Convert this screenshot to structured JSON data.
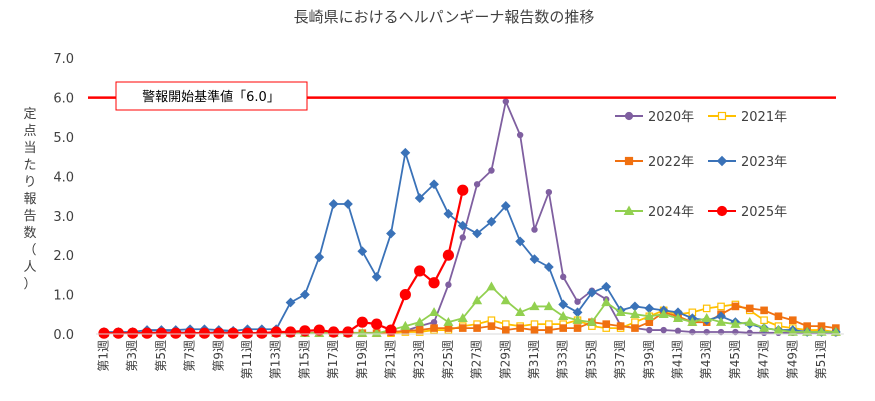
{
  "chart_data": {
    "type": "line",
    "title": "長崎県におけるヘルパンギーナ報告数の推移",
    "ylabel": "定点当たり報告数（人）",
    "xlabel": "",
    "ylim": [
      0,
      7
    ],
    "yticks": [
      "0.0",
      "1.0",
      "2.0",
      "3.0",
      "4.0",
      "5.0",
      "6.0",
      "7.0"
    ],
    "grid": false,
    "legend_position": "right",
    "weeks": [
      1,
      2,
      3,
      4,
      5,
      6,
      7,
      8,
      9,
      10,
      11,
      12,
      13,
      14,
      15,
      16,
      17,
      18,
      19,
      20,
      21,
      22,
      23,
      24,
      25,
      26,
      27,
      28,
      29,
      30,
      31,
      32,
      33,
      34,
      35,
      36,
      37,
      38,
      39,
      40,
      41,
      42,
      43,
      44,
      45,
      46,
      47,
      48,
      49,
      50,
      51,
      52
    ],
    "x_tick_labels": [
      "第1週",
      "第3週",
      "第5週",
      "第7週",
      "第9週",
      "第11週",
      "第13週",
      "第15週",
      "第17週",
      "第19週",
      "第21週",
      "第23週",
      "第25週",
      "第27週",
      "第29週",
      "第31週",
      "第33週",
      "第35週",
      "第37週",
      "第39週",
      "第41週",
      "第43週",
      "第45週",
      "第47週",
      "第49週",
      "第51週"
    ],
    "threshold": {
      "value": 6.0,
      "label": "警報開始基準値「6.0」",
      "color": "#ff0000"
    },
    "series": [
      {
        "name": "2020年",
        "color": "#7f5fa0",
        "marker": "circle",
        "fill": true,
        "values": [
          0.02,
          0.03,
          0.03,
          0.03,
          0.05,
          0.05,
          0.03,
          0.03,
          0.05,
          0.03,
          0.03,
          0.03,
          0.03,
          0.03,
          0.03,
          0.03,
          0.03,
          0.03,
          0.03,
          0.03,
          0.05,
          0.08,
          0.2,
          0.3,
          1.25,
          2.45,
          3.8,
          4.15,
          5.9,
          5.05,
          2.65,
          3.6,
          1.45,
          0.82,
          1.1,
          0.88,
          0.22,
          0.15,
          0.1,
          0.1,
          0.08,
          0.05,
          0.05,
          0.05,
          0.05,
          0.03,
          0.03,
          0.03,
          0.03,
          0.03,
          0.03,
          0.02
        ]
      },
      {
        "name": "2021年",
        "color": "#ffc000",
        "marker": "square",
        "fill": false,
        "values": [
          0.02,
          0.02,
          0.02,
          0.02,
          0.02,
          0.02,
          0.02,
          0.02,
          0.02,
          0.02,
          0.02,
          0.02,
          0.02,
          0.02,
          0.02,
          0.02,
          0.02,
          0.02,
          0.02,
          0.02,
          0.02,
          0.05,
          0.05,
          0.1,
          0.1,
          0.2,
          0.25,
          0.35,
          0.25,
          0.2,
          0.25,
          0.25,
          0.25,
          0.35,
          0.2,
          0.15,
          0.15,
          0.3,
          0.45,
          0.6,
          0.5,
          0.55,
          0.65,
          0.7,
          0.75,
          0.6,
          0.35,
          0.2,
          0.15,
          0.1,
          0.1,
          0.05
        ]
      },
      {
        "name": "2022年",
        "color": "#f07010",
        "marker": "square",
        "fill": true,
        "values": [
          0.02,
          0.02,
          0.02,
          0.02,
          0.02,
          0.02,
          0.02,
          0.02,
          0.02,
          0.02,
          0.02,
          0.02,
          0.02,
          0.02,
          0.02,
          0.02,
          0.02,
          0.02,
          0.02,
          0.02,
          0.05,
          0.08,
          0.1,
          0.15,
          0.15,
          0.15,
          0.15,
          0.2,
          0.1,
          0.15,
          0.1,
          0.1,
          0.15,
          0.15,
          0.3,
          0.25,
          0.2,
          0.15,
          0.3,
          0.55,
          0.45,
          0.3,
          0.3,
          0.5,
          0.7,
          0.65,
          0.6,
          0.45,
          0.35,
          0.2,
          0.2,
          0.15
        ]
      },
      {
        "name": "2023年",
        "color": "#3a72b8",
        "marker": "diamond",
        "fill": true,
        "values": [
          0.05,
          0.05,
          0.05,
          0.1,
          0.1,
          0.1,
          0.12,
          0.12,
          0.1,
          0.08,
          0.12,
          0.12,
          0.12,
          0.8,
          1.0,
          1.95,
          3.3,
          3.3,
          2.1,
          1.45,
          2.55,
          4.6,
          3.45,
          3.8,
          3.05,
          2.75,
          2.55,
          2.85,
          3.25,
          2.35,
          1.9,
          1.7,
          0.75,
          0.55,
          1.05,
          1.2,
          0.6,
          0.7,
          0.65,
          0.6,
          0.55,
          0.4,
          0.35,
          0.45,
          0.3,
          0.25,
          0.15,
          0.1,
          0.1,
          0.05,
          0.05,
          0.05
        ]
      },
      {
        "name": "2024年",
        "color": "#92d050",
        "marker": "triangle",
        "fill": true,
        "values": [
          0.02,
          0.02,
          0.02,
          0.02,
          0.02,
          0.02,
          0.02,
          0.02,
          0.02,
          0.02,
          0.02,
          0.02,
          0.02,
          0.02,
          0.02,
          0.02,
          0.02,
          0.02,
          0.02,
          0.02,
          0.1,
          0.2,
          0.3,
          0.55,
          0.3,
          0.4,
          0.85,
          1.2,
          0.85,
          0.55,
          0.7,
          0.7,
          0.45,
          0.35,
          0.3,
          0.8,
          0.55,
          0.5,
          0.45,
          0.5,
          0.4,
          0.3,
          0.4,
          0.3,
          0.25,
          0.3,
          0.15,
          0.1,
          0.05,
          0.05,
          0.05,
          0.05
        ]
      },
      {
        "name": "2025年",
        "color": "#ff0000",
        "marker": "circle",
        "fill": true,
        "values": [
          0.02,
          0.02,
          0.02,
          0.02,
          0.02,
          0.02,
          0.02,
          0.02,
          0.02,
          0.02,
          0.02,
          0.02,
          0.05,
          0.05,
          0.08,
          0.1,
          0.05,
          0.05,
          0.3,
          0.25,
          0.1,
          1.0,
          1.6,
          1.3,
          2.0,
          3.65
        ]
      }
    ]
  }
}
